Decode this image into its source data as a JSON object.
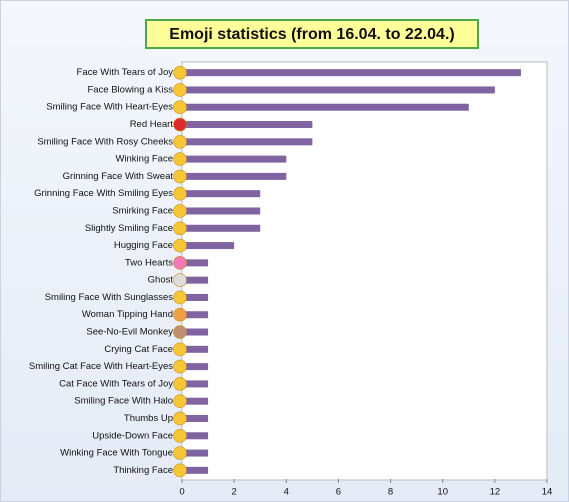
{
  "chart_data": {
    "type": "bar",
    "orientation": "horizontal",
    "title": "Emoji statistics (from 16.04. to 22.04.)",
    "categories": [
      "Face With Tears of Joy",
      "Face Blowing a Kiss",
      "Smiling Face With Heart-Eyes",
      "Red Heart",
      "Smiling Face With Rosy Cheeks",
      "Winking Face",
      "Grinning Face With Sweat",
      "Grinning Face With Smiling Eyes",
      "Smirking Face",
      "Slightly Smiling Face",
      "Hugging Face",
      "Two Hearts",
      "Ghost",
      "Smiling Face With Sunglasses",
      "Woman Tipping Hand",
      "See-No-Evil Monkey",
      "Crying Cat Face",
      "Smiling Cat Face With Heart-Eyes",
      "Cat Face With Tears of Joy",
      "Smiling Face With Halo",
      "Thumbs Up",
      "Upside-Down Face",
      "Winking Face With Tongue",
      "Thinking Face"
    ],
    "values": [
      13,
      12,
      11,
      5,
      5,
      4,
      4,
      3,
      3,
      3,
      2,
      1,
      1,
      1,
      1,
      1,
      1,
      1,
      1,
      1,
      1,
      1,
      1,
      1
    ],
    "color": "#8064a2",
    "xlim": [
      0,
      14
    ],
    "xticks": [
      0,
      2,
      4,
      6,
      8,
      10,
      12,
      14
    ],
    "grid": false
  }
}
